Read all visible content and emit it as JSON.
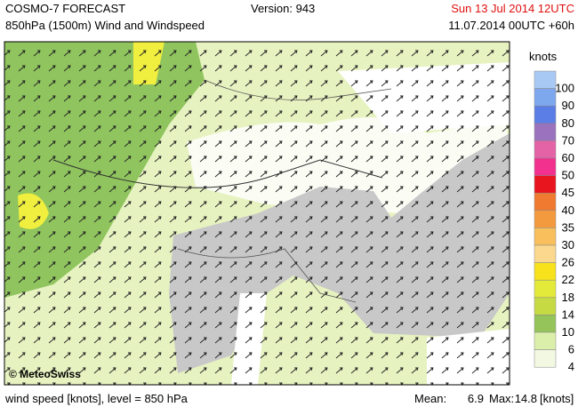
{
  "header": {
    "title": "COSMO-7 FORECAST",
    "subtitle": "850hPa (1500m) Wind and Windspeed",
    "version": "Version: 943",
    "valid_time": "Sun 13 Jul 2014 12UTC",
    "run_time": "11.07.2014 00UTC +60h"
  },
  "legend": {
    "title": "knots",
    "items": [
      {
        "value": 100,
        "color": "#a9c9f5"
      },
      {
        "value": 90,
        "color": "#7da8ee"
      },
      {
        "value": 80,
        "color": "#5a7ee6"
      },
      {
        "value": 70,
        "color": "#9a72bd"
      },
      {
        "value": 60,
        "color": "#e462a6"
      },
      {
        "value": 50,
        "color": "#f2308e"
      },
      {
        "value": 45,
        "color": "#e8141e"
      },
      {
        "value": 40,
        "color": "#f07a30"
      },
      {
        "value": 35,
        "color": "#f49a3e"
      },
      {
        "value": 30,
        "color": "#f8bf5c"
      },
      {
        "value": 26,
        "color": "#fbd88e"
      },
      {
        "value": 22,
        "color": "#f7e21c"
      },
      {
        "value": 18,
        "color": "#e4ea3a"
      },
      {
        "value": 14,
        "color": "#c6da44"
      },
      {
        "value": 10,
        "color": "#94c45a"
      },
      {
        "value": 6,
        "color": "#dcefaa"
      },
      {
        "value": 4,
        "color": "#f2f8e2"
      }
    ]
  },
  "copyright": "© MeteoSwiss",
  "footer": {
    "description": "wind speed [knots], level = 850 hPa",
    "mean_label": "Mean:",
    "mean": 6.9,
    "max_label": "Max:",
    "max": 14.8,
    "unit": "[knots]"
  }
}
